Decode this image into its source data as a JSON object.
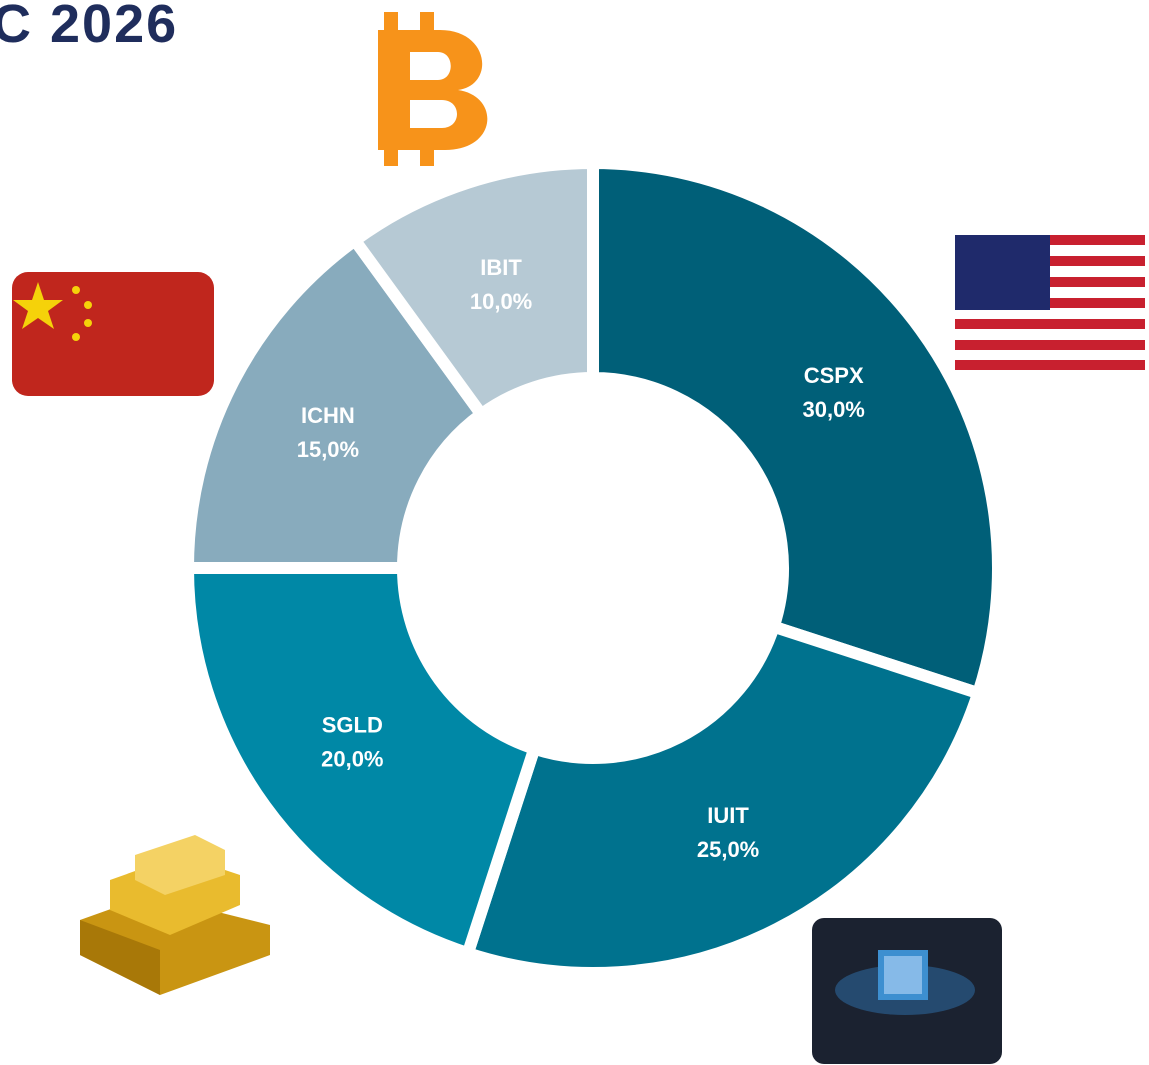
{
  "chart_data": {
    "type": "donut",
    "title": "C 2026",
    "categories": [
      "CSPX",
      "IUIT",
      "SGLD",
      "ICHN",
      "IBIT"
    ],
    "values": [
      30,
      25,
      20,
      15,
      10
    ],
    "value_labels": [
      "30,0%",
      "25,0%",
      "20,0%",
      "15,0%",
      "10,0%"
    ],
    "colors": [
      "#005f78",
      "#00728e",
      "#0088a6",
      "#88abbd",
      "#b6c9d4"
    ]
  }
}
